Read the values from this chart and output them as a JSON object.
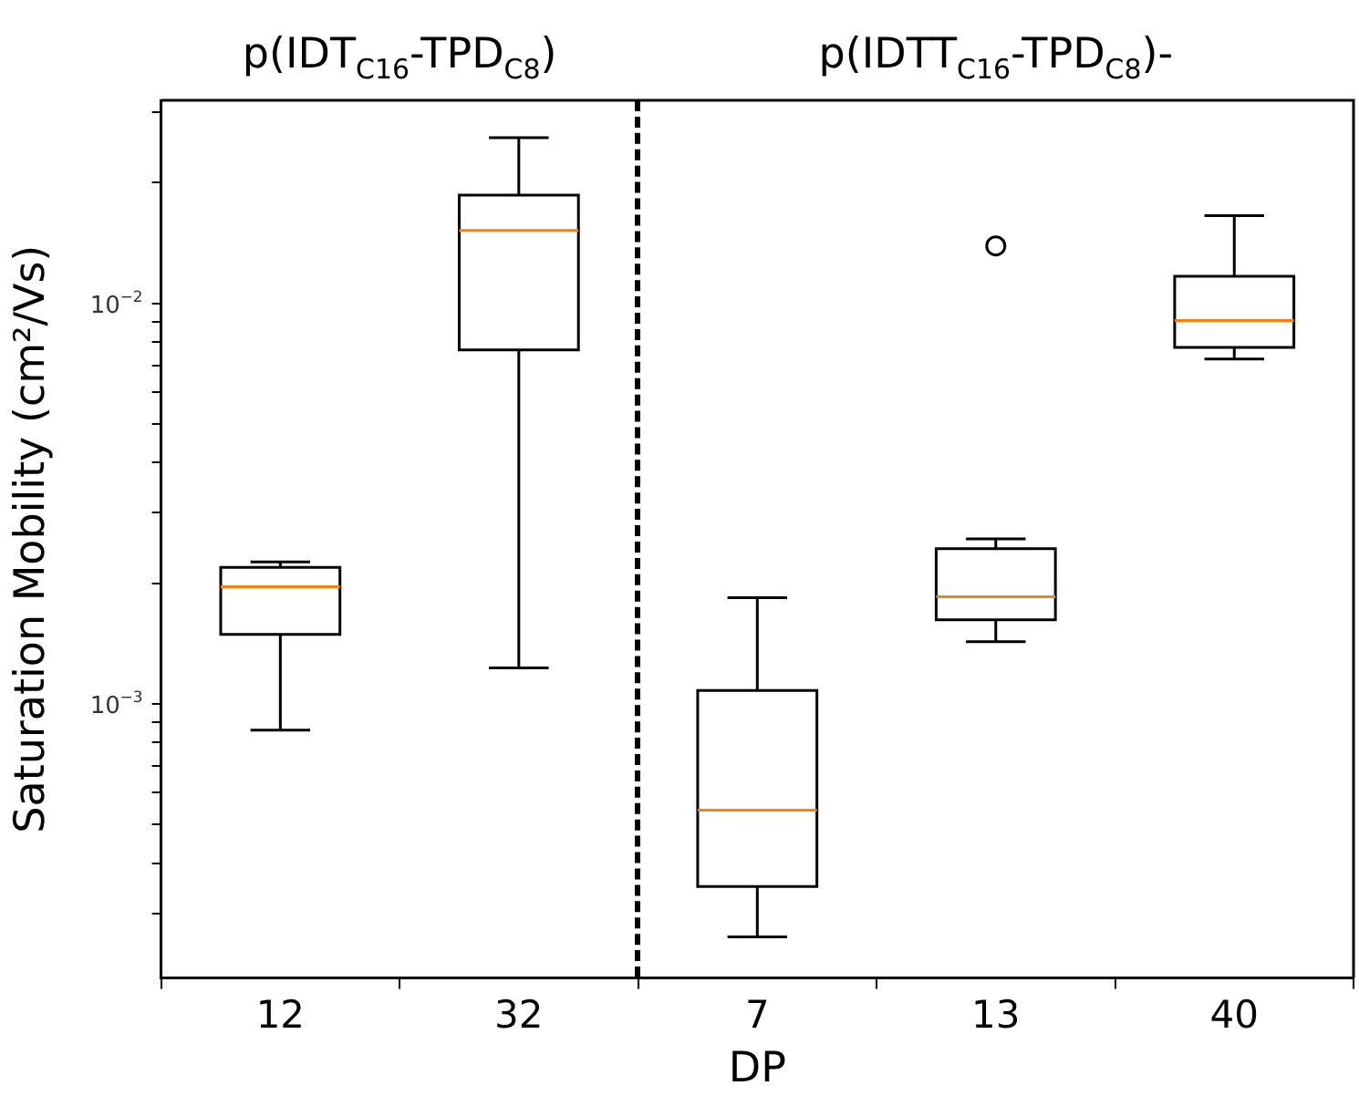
{
  "chart_data": {
    "type": "box",
    "xlabel": "DP",
    "ylabel": "Saturation Mobility (cm²/Vs)",
    "categories": [
      "12",
      "32",
      "7",
      "13",
      "40"
    ],
    "boxes": [
      {
        "low": 0.00086,
        "q1": 0.00149,
        "median": 0.00196,
        "q3": 0.00219,
        "high": 0.00226
      },
      {
        "low": 0.00123,
        "q1": 0.00765,
        "median": 0.0152,
        "q3": 0.0186,
        "high": 0.0259
      },
      {
        "low": 0.000262,
        "q1": 0.00035,
        "median": 0.000543,
        "q3": 0.00108,
        "high": 0.00184
      },
      {
        "low": 0.00143,
        "q1": 0.00162,
        "median": 0.00185,
        "q3": 0.00244,
        "high": 0.00258,
        "outliers": [
          0.0139
        ]
      },
      {
        "low": 0.00726,
        "q1": 0.00776,
        "median": 0.00905,
        "q3": 0.01167,
        "high": 0.01655
      }
    ],
    "log": "y",
    "ylim": [
      0.000207,
      0.0321
    ],
    "yticks": [
      {
        "value": 0.0003,
        "label": null
      },
      {
        "value": 0.0004,
        "label": null
      },
      {
        "value": 0.0005,
        "label": null
      },
      {
        "value": 0.0006,
        "label": null
      },
      {
        "value": 0.0007,
        "label": null
      },
      {
        "value": 0.0008,
        "label": null
      },
      {
        "value": 0.0009,
        "label": null
      },
      {
        "value": 0.001,
        "label": "10$^{−3}$"
      },
      {
        "value": 0.002,
        "label": null
      },
      {
        "value": 0.003,
        "label": null
      },
      {
        "value": 0.004,
        "label": null
      },
      {
        "value": 0.005,
        "label": null
      },
      {
        "value": 0.006,
        "label": null
      },
      {
        "value": 0.007,
        "label": null
      },
      {
        "value": 0.008,
        "label": null
      },
      {
        "value": 0.009,
        "label": null
      },
      {
        "value": 0.01,
        "label": "10$^{−2}$"
      },
      {
        "value": 0.02,
        "label": null
      },
      {
        "value": 0.03,
        "label": null
      }
    ],
    "annotations": [
      "p(IDT$_{C16}$-TPD$_{C8}$)",
      "p(IDTT$_{C16}$-TPD$_{C8}$)-"
    ],
    "grid": false
  }
}
